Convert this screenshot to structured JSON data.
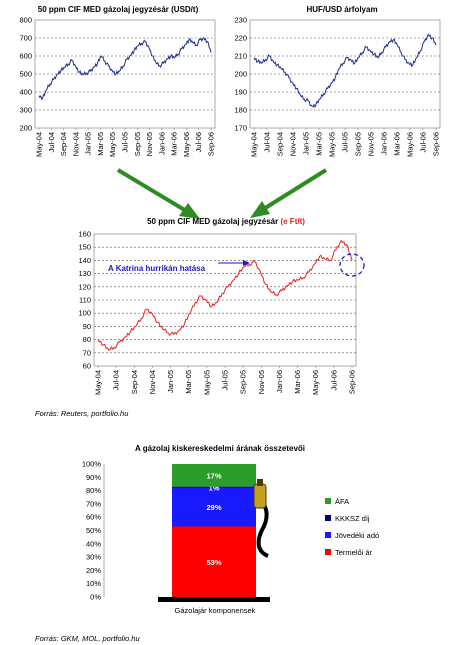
{
  "chart_data": [
    {
      "type": "line",
      "title": "50 ppm CIF MED gázolaj jegyzésár (USD/t)",
      "ylim": [
        200,
        800
      ],
      "yticks": [
        200,
        300,
        400,
        500,
        600,
        700,
        800
      ],
      "xticks": [
        "May-04",
        "Jul-04",
        "Sep-04",
        "Nov-04",
        "Jan-05",
        "Mar-05",
        "May-05",
        "Jul-05",
        "Sep-05",
        "Nov-05",
        "Jan-06",
        "Mar-06",
        "May-06",
        "Jul-06",
        "Sep-06"
      ],
      "series": [
        {
          "color": "#1f2f8c",
          "points": [
            [
              0,
              380
            ],
            [
              1,
              365
            ],
            [
              2,
              410
            ],
            [
              3,
              445
            ],
            [
              4,
              470
            ],
            [
              5,
              500
            ],
            [
              6,
              520
            ],
            [
              7,
              535
            ],
            [
              8,
              555
            ],
            [
              9,
              575
            ],
            [
              10,
              545
            ],
            [
              11,
              510
            ],
            [
              12,
              495
            ],
            [
              13,
              505
            ],
            [
              14,
              515
            ],
            [
              15,
              540
            ],
            [
              16,
              560
            ],
            [
              17,
              600
            ],
            [
              18,
              570
            ],
            [
              19,
              545
            ],
            [
              20,
              520
            ],
            [
              21,
              500
            ],
            [
              22,
              515
            ],
            [
              23,
              545
            ],
            [
              24,
              580
            ],
            [
              25,
              605
            ],
            [
              26,
              630
            ],
            [
              27,
              655
            ],
            [
              28,
              670
            ],
            [
              29,
              680
            ],
            [
              30,
              650
            ],
            [
              31,
              600
            ],
            [
              32,
              560
            ],
            [
              33,
              545
            ],
            [
              34,
              560
            ],
            [
              35,
              585
            ],
            [
              36,
              600
            ],
            [
              37,
              590
            ],
            [
              38,
              610
            ],
            [
              39,
              640
            ],
            [
              40,
              665
            ],
            [
              41,
              690
            ],
            [
              42,
              675
            ],
            [
              43,
              660
            ],
            [
              44,
              690
            ],
            [
              45,
              700
            ],
            [
              46,
              680
            ],
            [
              47,
              620
            ]
          ]
        }
      ]
    },
    {
      "type": "line",
      "title": "HUF/USD árfolyam",
      "ylim": [
        170,
        230
      ],
      "yticks": [
        170,
        180,
        190,
        200,
        210,
        220,
        230
      ],
      "xticks": [
        "May-04",
        "Jul-04",
        "Sep-04",
        "Nov-04",
        "Jan-05",
        "Mar-05",
        "May-05",
        "Jul-05",
        "Sep-05",
        "Nov-05",
        "Jan-06",
        "Mar-06",
        "May-06",
        "Jul-06",
        "Sep-06"
      ],
      "series": [
        {
          "color": "#1f2f8c",
          "points": [
            [
              0,
              209
            ],
            [
              1,
              207
            ],
            [
              2,
              206
            ],
            [
              3,
              208
            ],
            [
              4,
              210
            ],
            [
              5,
              207
            ],
            [
              6,
              205
            ],
            [
              7,
              203
            ],
            [
              8,
              201
            ],
            [
              9,
              198
            ],
            [
              10,
              195
            ],
            [
              11,
              192
            ],
            [
              12,
              188
            ],
            [
              13,
              186
            ],
            [
              14,
              185
            ],
            [
              15,
              182
            ],
            [
              16,
              183
            ],
            [
              17,
              186
            ],
            [
              18,
              189
            ],
            [
              19,
              192
            ],
            [
              20,
              195
            ],
            [
              21,
              198
            ],
            [
              22,
              203
            ],
            [
              23,
              206
            ],
            [
              24,
              209
            ],
            [
              25,
              208
            ],
            [
              26,
              206
            ],
            [
              27,
              209
            ],
            [
              28,
              212
            ],
            [
              29,
              215
            ],
            [
              30,
              213
            ],
            [
              31,
              211
            ],
            [
              32,
              209
            ],
            [
              33,
              212
            ],
            [
              34,
              215
            ],
            [
              35,
              218
            ],
            [
              36,
              219
            ],
            [
              37,
              216
            ],
            [
              38,
              212
            ],
            [
              39,
              208
            ],
            [
              40,
              206
            ],
            [
              41,
              205
            ],
            [
              42,
              209
            ],
            [
              43,
              213
            ],
            [
              44,
              218
            ],
            [
              45,
              222
            ],
            [
              46,
              220
            ],
            [
              47,
              216
            ]
          ]
        }
      ]
    },
    {
      "type": "line",
      "title_main": "50 ppm CIF MED gázolaj jegyzésár ",
      "title_unit": "(e Ft/t)",
      "ylim": [
        60,
        160
      ],
      "yticks": [
        60,
        70,
        80,
        90,
        100,
        110,
        120,
        130,
        140,
        150,
        160
      ],
      "xticks": [
        "May-04",
        "Jul-04",
        "Sep-04",
        "Nov-04",
        "Jan-05",
        "Mar-05",
        "May-05",
        "Jul-05",
        "Sep-05",
        "Nov-05",
        "Jan-06",
        "Mar-06",
        "May-06",
        "Jul-06",
        "Sep-06"
      ],
      "annotation": "A Katrina hurrikán hatása",
      "series": [
        {
          "color": "#e8201c",
          "points": [
            [
              0,
              80
            ],
            [
              1,
              76
            ],
            [
              2,
              72
            ],
            [
              3,
              74
            ],
            [
              4,
              78
            ],
            [
              5,
              82
            ],
            [
              6,
              86
            ],
            [
              7,
              90
            ],
            [
              8,
              96
            ],
            [
              9,
              103
            ],
            [
              10,
              100
            ],
            [
              11,
              93
            ],
            [
              12,
              88
            ],
            [
              13,
              85
            ],
            [
              14,
              84
            ],
            [
              15,
              87
            ],
            [
              16,
              92
            ],
            [
              17,
              100
            ],
            [
              18,
              108
            ],
            [
              19,
              113
            ],
            [
              20,
              110
            ],
            [
              21,
              105
            ],
            [
              22,
              108
            ],
            [
              23,
              115
            ],
            [
              24,
              120
            ],
            [
              25,
              125
            ],
            [
              26,
              130
            ],
            [
              27,
              135
            ],
            [
              28,
              137
            ],
            [
              29,
              139
            ],
            [
              30,
              132
            ],
            [
              31,
              122
            ],
            [
              32,
              116
            ],
            [
              33,
              114
            ],
            [
              34,
              117
            ],
            [
              35,
              121
            ],
            [
              36,
              124
            ],
            [
              37,
              125
            ],
            [
              38,
              127
            ],
            [
              39,
              131
            ],
            [
              40,
              137
            ],
            [
              41,
              143
            ],
            [
              42,
              141
            ],
            [
              43,
              140
            ],
            [
              44,
              148
            ],
            [
              45,
              155
            ],
            [
              46,
              152
            ],
            [
              47,
              140
            ]
          ]
        }
      ]
    },
    {
      "type": "bar",
      "title": "A gázolaj kiskereskedelmi árának összetevői",
      "categories": [
        "Gázolajár komponensek"
      ],
      "ylim": [
        0,
        100
      ],
      "yticks": [
        "0%",
        "10%",
        "20%",
        "30%",
        "40%",
        "50%",
        "60%",
        "70%",
        "80%",
        "90%",
        "100%"
      ],
      "series": [
        {
          "name": "Termelői ár",
          "value": 53,
          "label": "53%",
          "color": "#ff0000"
        },
        {
          "name": "Jövedéki adó",
          "value": 29,
          "label": "29%",
          "color": "#1a1aff"
        },
        {
          "name": "KKKSZ díj",
          "value": 1,
          "label": "1%",
          "color": "#000080"
        },
        {
          "name": "ÁFA",
          "value": 17,
          "label": "17%",
          "color": "#2a9d2a"
        }
      ]
    }
  ],
  "sources": {
    "source1": "Forrás: Reuters, portfolio.hu",
    "source2": "Forrás: GKM, MOL, portfolio.hu"
  }
}
